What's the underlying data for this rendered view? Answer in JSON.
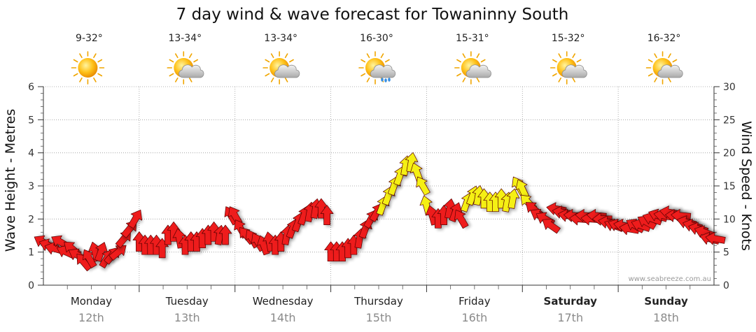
{
  "chart_data": {
    "type": "line",
    "title": "7 day wind & wave forecast for Towaninny South",
    "ylabel_left": "Wave Height - Metres",
    "ylabel_right": "Wind Speed - Knots",
    "ylim_left": [
      0,
      6
    ],
    "ylim_right": [
      0,
      30
    ],
    "yticks_left": [
      "0",
      "1",
      "2",
      "3",
      "4",
      "5",
      "6"
    ],
    "yticks_right": [
      "0",
      "5",
      "10",
      "15",
      "20",
      "25",
      "30"
    ],
    "grid": true,
    "watermark": "www.seabreeze.com.au",
    "days": [
      {
        "day": "Monday",
        "date": "12th",
        "temp": "9-32°",
        "weather": "sunny",
        "weekend": false
      },
      {
        "day": "Tuesday",
        "date": "13th",
        "temp": "13-34°",
        "weather": "partly-cloudy",
        "weekend": false
      },
      {
        "day": "Wednesday",
        "date": "14th",
        "temp": "13-34°",
        "weather": "partly-cloudy",
        "weekend": false
      },
      {
        "day": "Thursday",
        "date": "15th",
        "temp": "16-30°",
        "weather": "partly-cloudy-rain",
        "weekend": false
      },
      {
        "day": "Friday",
        "date": "16th",
        "temp": "15-31°",
        "weather": "partly-cloudy",
        "weekend": false
      },
      {
        "day": "Saturday",
        "date": "17th",
        "temp": "15-32°",
        "weather": "partly-cloudy",
        "weekend": true
      },
      {
        "day": "Sunday",
        "date": "18th",
        "temp": "16-32°",
        "weather": "partly-cloudy",
        "weekend": true
      }
    ],
    "series": [
      {
        "unit": "knots",
        "colors": {
          "strong": "#ee1c1c",
          "light": "#f5f014",
          "outline": "#5a0000"
        },
        "points": [
          [
            0.0,
            6.5,
            300
          ],
          [
            0.06,
            6,
            290
          ],
          [
            0.12,
            5.5,
            285
          ],
          [
            0.18,
            6.5,
            300
          ],
          [
            0.24,
            5,
            295
          ],
          [
            0.3,
            5.5,
            310
          ],
          [
            0.36,
            4.5,
            300
          ],
          [
            0.42,
            3.5,
            320
          ],
          [
            0.48,
            4,
            330
          ],
          [
            0.54,
            5,
            345
          ],
          [
            0.6,
            5,
            20
          ],
          [
            0.66,
            4,
            30
          ],
          [
            0.72,
            4.5,
            40
          ],
          [
            0.78,
            5,
            50
          ],
          [
            0.84,
            7,
            40
          ],
          [
            0.9,
            8.5,
            40
          ],
          [
            0.96,
            10,
            30
          ],
          [
            1.0,
            6.5,
            0
          ],
          [
            1.06,
            6,
            0
          ],
          [
            1.12,
            6,
            0
          ],
          [
            1.18,
            6,
            0
          ],
          [
            1.24,
            5.5,
            0
          ],
          [
            1.3,
            7.5,
            0
          ],
          [
            1.36,
            8,
            0
          ],
          [
            1.42,
            7,
            350
          ],
          [
            1.48,
            6,
            0
          ],
          [
            1.54,
            6.5,
            0
          ],
          [
            1.6,
            6.5,
            0
          ],
          [
            1.66,
            7,
            0
          ],
          [
            1.72,
            7.5,
            0
          ],
          [
            1.78,
            8,
            0
          ],
          [
            1.84,
            7.5,
            10
          ],
          [
            1.9,
            7.5,
            0
          ],
          [
            1.96,
            10.5,
            330
          ],
          [
            2.0,
            10.5,
            330
          ],
          [
            2.06,
            8.5,
            330
          ],
          [
            2.12,
            7.5,
            320
          ],
          [
            2.18,
            7,
            330
          ],
          [
            2.24,
            6.5,
            330
          ],
          [
            2.3,
            6,
            340
          ],
          [
            2.36,
            6.5,
            350
          ],
          [
            2.42,
            6,
            0
          ],
          [
            2.48,
            6.5,
            0
          ],
          [
            2.54,
            7.5,
            10
          ],
          [
            2.6,
            8.5,
            20
          ],
          [
            2.66,
            9.5,
            20
          ],
          [
            2.72,
            10.5,
            20
          ],
          [
            2.78,
            11,
            10
          ],
          [
            2.84,
            11.5,
            10
          ],
          [
            2.9,
            11.5,
            0
          ],
          [
            2.96,
            10.5,
            0
          ],
          [
            3.0,
            5,
            0
          ],
          [
            3.06,
            5,
            0
          ],
          [
            3.12,
            5,
            0
          ],
          [
            3.18,
            5.5,
            0
          ],
          [
            3.24,
            6,
            0
          ],
          [
            3.3,
            7,
            10
          ],
          [
            3.36,
            8.5,
            20
          ],
          [
            3.42,
            10,
            30
          ],
          [
            3.48,
            11,
            30
          ],
          [
            3.54,
            12,
            20
          ],
          [
            3.6,
            13.5,
            20
          ],
          [
            3.66,
            15,
            20
          ],
          [
            3.72,
            16.5,
            20
          ],
          [
            3.78,
            18,
            10
          ],
          [
            3.84,
            18.5,
            10
          ],
          [
            3.9,
            17,
            340
          ],
          [
            3.96,
            15,
            330
          ],
          [
            4.0,
            12,
            345
          ],
          [
            4.06,
            10.5,
            345
          ],
          [
            4.12,
            10,
            0
          ],
          [
            4.18,
            10.5,
            0
          ],
          [
            4.24,
            11.5,
            10
          ],
          [
            4.3,
            11,
            20
          ],
          [
            4.36,
            10,
            330
          ],
          [
            4.42,
            12.5,
            20
          ],
          [
            4.48,
            13.5,
            20
          ],
          [
            4.54,
            13.5,
            10
          ],
          [
            4.6,
            13,
            0
          ],
          [
            4.66,
            12.5,
            0
          ],
          [
            4.72,
            12.5,
            0
          ],
          [
            4.78,
            13,
            0
          ],
          [
            4.84,
            12.5,
            10
          ],
          [
            4.9,
            13,
            10
          ],
          [
            4.96,
            15,
            330
          ],
          [
            5.0,
            14.5,
            335
          ],
          [
            5.06,
            12.5,
            315
          ],
          [
            5.12,
            11.5,
            310
          ],
          [
            5.18,
            10.5,
            300
          ],
          [
            5.24,
            10,
            300
          ],
          [
            5.3,
            9,
            305
          ],
          [
            5.36,
            11.5,
            280
          ],
          [
            5.42,
            11,
            280
          ],
          [
            5.48,
            10.5,
            280
          ],
          [
            5.54,
            10.5,
            275
          ],
          [
            5.6,
            10,
            275
          ],
          [
            5.66,
            10.5,
            275
          ],
          [
            5.72,
            10,
            275
          ],
          [
            5.78,
            10.5,
            275
          ],
          [
            5.84,
            10,
            270
          ],
          [
            5.9,
            9.5,
            280
          ],
          [
            5.96,
            9,
            290
          ],
          [
            6.0,
            9,
            290
          ],
          [
            6.06,
            9,
            280
          ],
          [
            6.12,
            8.5,
            280
          ],
          [
            6.18,
            9,
            300
          ],
          [
            6.24,
            9,
            290
          ],
          [
            6.3,
            9.5,
            300
          ],
          [
            6.36,
            10,
            290
          ],
          [
            6.42,
            10.5,
            290
          ],
          [
            6.48,
            10.5,
            280
          ],
          [
            6.54,
            11,
            280
          ],
          [
            6.6,
            10.5,
            275
          ],
          [
            6.66,
            10.5,
            275
          ],
          [
            6.72,
            9.5,
            285
          ],
          [
            6.78,
            9,
            285
          ],
          [
            6.84,
            8.5,
            285
          ],
          [
            6.9,
            8,
            290
          ],
          [
            6.96,
            7,
            285
          ],
          [
            7.02,
            7,
            280
          ]
        ]
      }
    ]
  }
}
